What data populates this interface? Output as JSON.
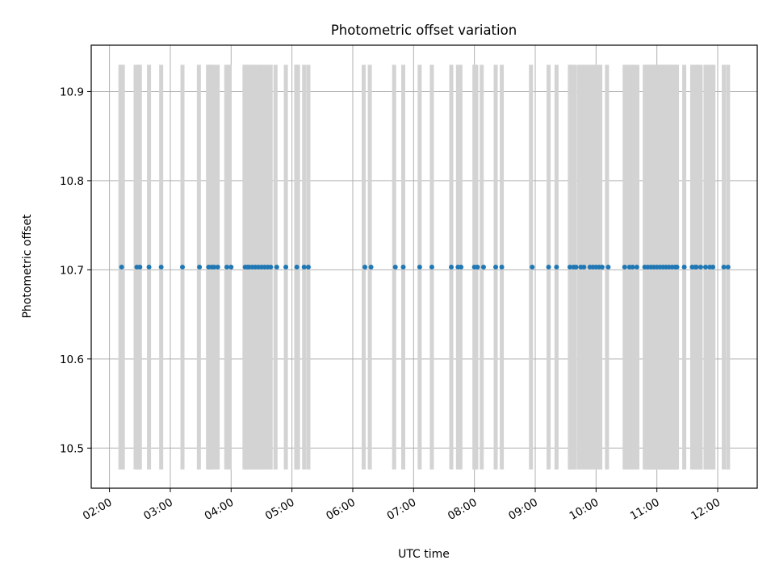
{
  "chart_data": {
    "type": "scatter",
    "title": "Photometric offset variation",
    "xlabel": "UTC time",
    "ylabel": "Photometric offset",
    "x_unit": "UTC hour of day",
    "xlim": [
      1.7,
      12.65
    ],
    "ylim": [
      10.455,
      10.952
    ],
    "x_ticks": [
      {
        "value": 2,
        "label": "02:00"
      },
      {
        "value": 3,
        "label": "03:00"
      },
      {
        "value": 4,
        "label": "04:00"
      },
      {
        "value": 5,
        "label": "05:00"
      },
      {
        "value": 6,
        "label": "06:00"
      },
      {
        "value": 7,
        "label": "07:00"
      },
      {
        "value": 8,
        "label": "08:00"
      },
      {
        "value": 9,
        "label": "09:00"
      },
      {
        "value": 10,
        "label": "10:00"
      },
      {
        "value": 11,
        "label": "11:00"
      },
      {
        "value": 12,
        "label": "12:00"
      }
    ],
    "y_ticks": [
      {
        "value": 10.5,
        "label": "10.5"
      },
      {
        "value": 10.6,
        "label": "10.6"
      },
      {
        "value": 10.7,
        "label": "10.7"
      },
      {
        "value": 10.8,
        "label": "10.8"
      },
      {
        "value": 10.9,
        "label": "10.9"
      }
    ],
    "grid": true,
    "marker_color": "#1f77b4",
    "band_color": "#d3d3d3",
    "grid_color": "#b0b0b0",
    "series": [
      {
        "y": 10.703,
        "x": [
          2.2,
          2.45,
          2.5,
          2.65,
          2.85,
          3.2,
          3.48,
          3.63,
          3.68,
          3.72,
          3.78,
          3.93,
          4.0,
          4.23,
          4.27,
          4.3,
          4.35,
          4.4,
          4.45,
          4.5,
          4.55,
          4.6,
          4.65,
          4.75,
          4.9,
          5.08,
          5.2,
          5.27,
          6.2,
          6.3,
          6.7,
          6.83,
          7.1,
          7.3,
          7.62,
          7.73,
          7.78,
          8.0,
          8.05,
          8.15,
          8.35,
          8.45,
          8.95,
          9.22,
          9.35,
          9.57,
          9.63,
          9.67,
          9.75,
          9.8,
          9.9,
          9.95,
          10.0,
          10.05,
          10.1,
          10.2,
          10.47,
          10.55,
          10.6,
          10.67,
          10.8,
          10.85,
          10.9,
          10.95,
          11.0,
          11.05,
          11.1,
          11.15,
          11.2,
          11.25,
          11.3,
          11.33,
          11.45,
          11.58,
          11.63,
          11.65,
          11.72,
          11.8,
          11.87,
          11.92,
          12.1,
          12.17
        ]
      }
    ],
    "vertical_bands": {
      "y_range": [
        10.476,
        10.93
      ],
      "x": [
        2.18,
        2.22,
        2.43,
        2.47,
        2.5,
        2.65,
        2.85,
        3.2,
        3.47,
        3.62,
        3.65,
        3.68,
        3.72,
        3.78,
        3.92,
        3.97,
        4.22,
        4.25,
        4.28,
        4.32,
        4.37,
        4.4,
        4.45,
        4.5,
        4.55,
        4.6,
        4.65,
        4.73,
        4.9,
        5.07,
        5.1,
        5.2,
        5.27,
        6.18,
        6.28,
        6.68,
        6.83,
        7.1,
        7.3,
        7.62,
        7.73,
        7.77,
        8.0,
        8.03,
        8.12,
        8.35,
        8.45,
        8.93,
        9.22,
        9.35,
        9.57,
        9.6,
        9.65,
        9.72,
        9.77,
        9.82,
        9.87,
        9.92,
        9.97,
        10.02,
        10.07,
        10.18,
        10.47,
        10.52,
        10.57,
        10.62,
        10.68,
        10.8,
        10.83,
        10.86,
        10.89,
        10.92,
        10.95,
        10.98,
        11.01,
        11.04,
        11.07,
        11.1,
        11.13,
        11.16,
        11.19,
        11.22,
        11.25,
        11.28,
        11.31,
        11.33,
        11.45,
        11.58,
        11.63,
        11.67,
        11.72,
        11.8,
        11.85,
        11.9,
        11.93,
        12.1,
        12.17
      ]
    }
  }
}
